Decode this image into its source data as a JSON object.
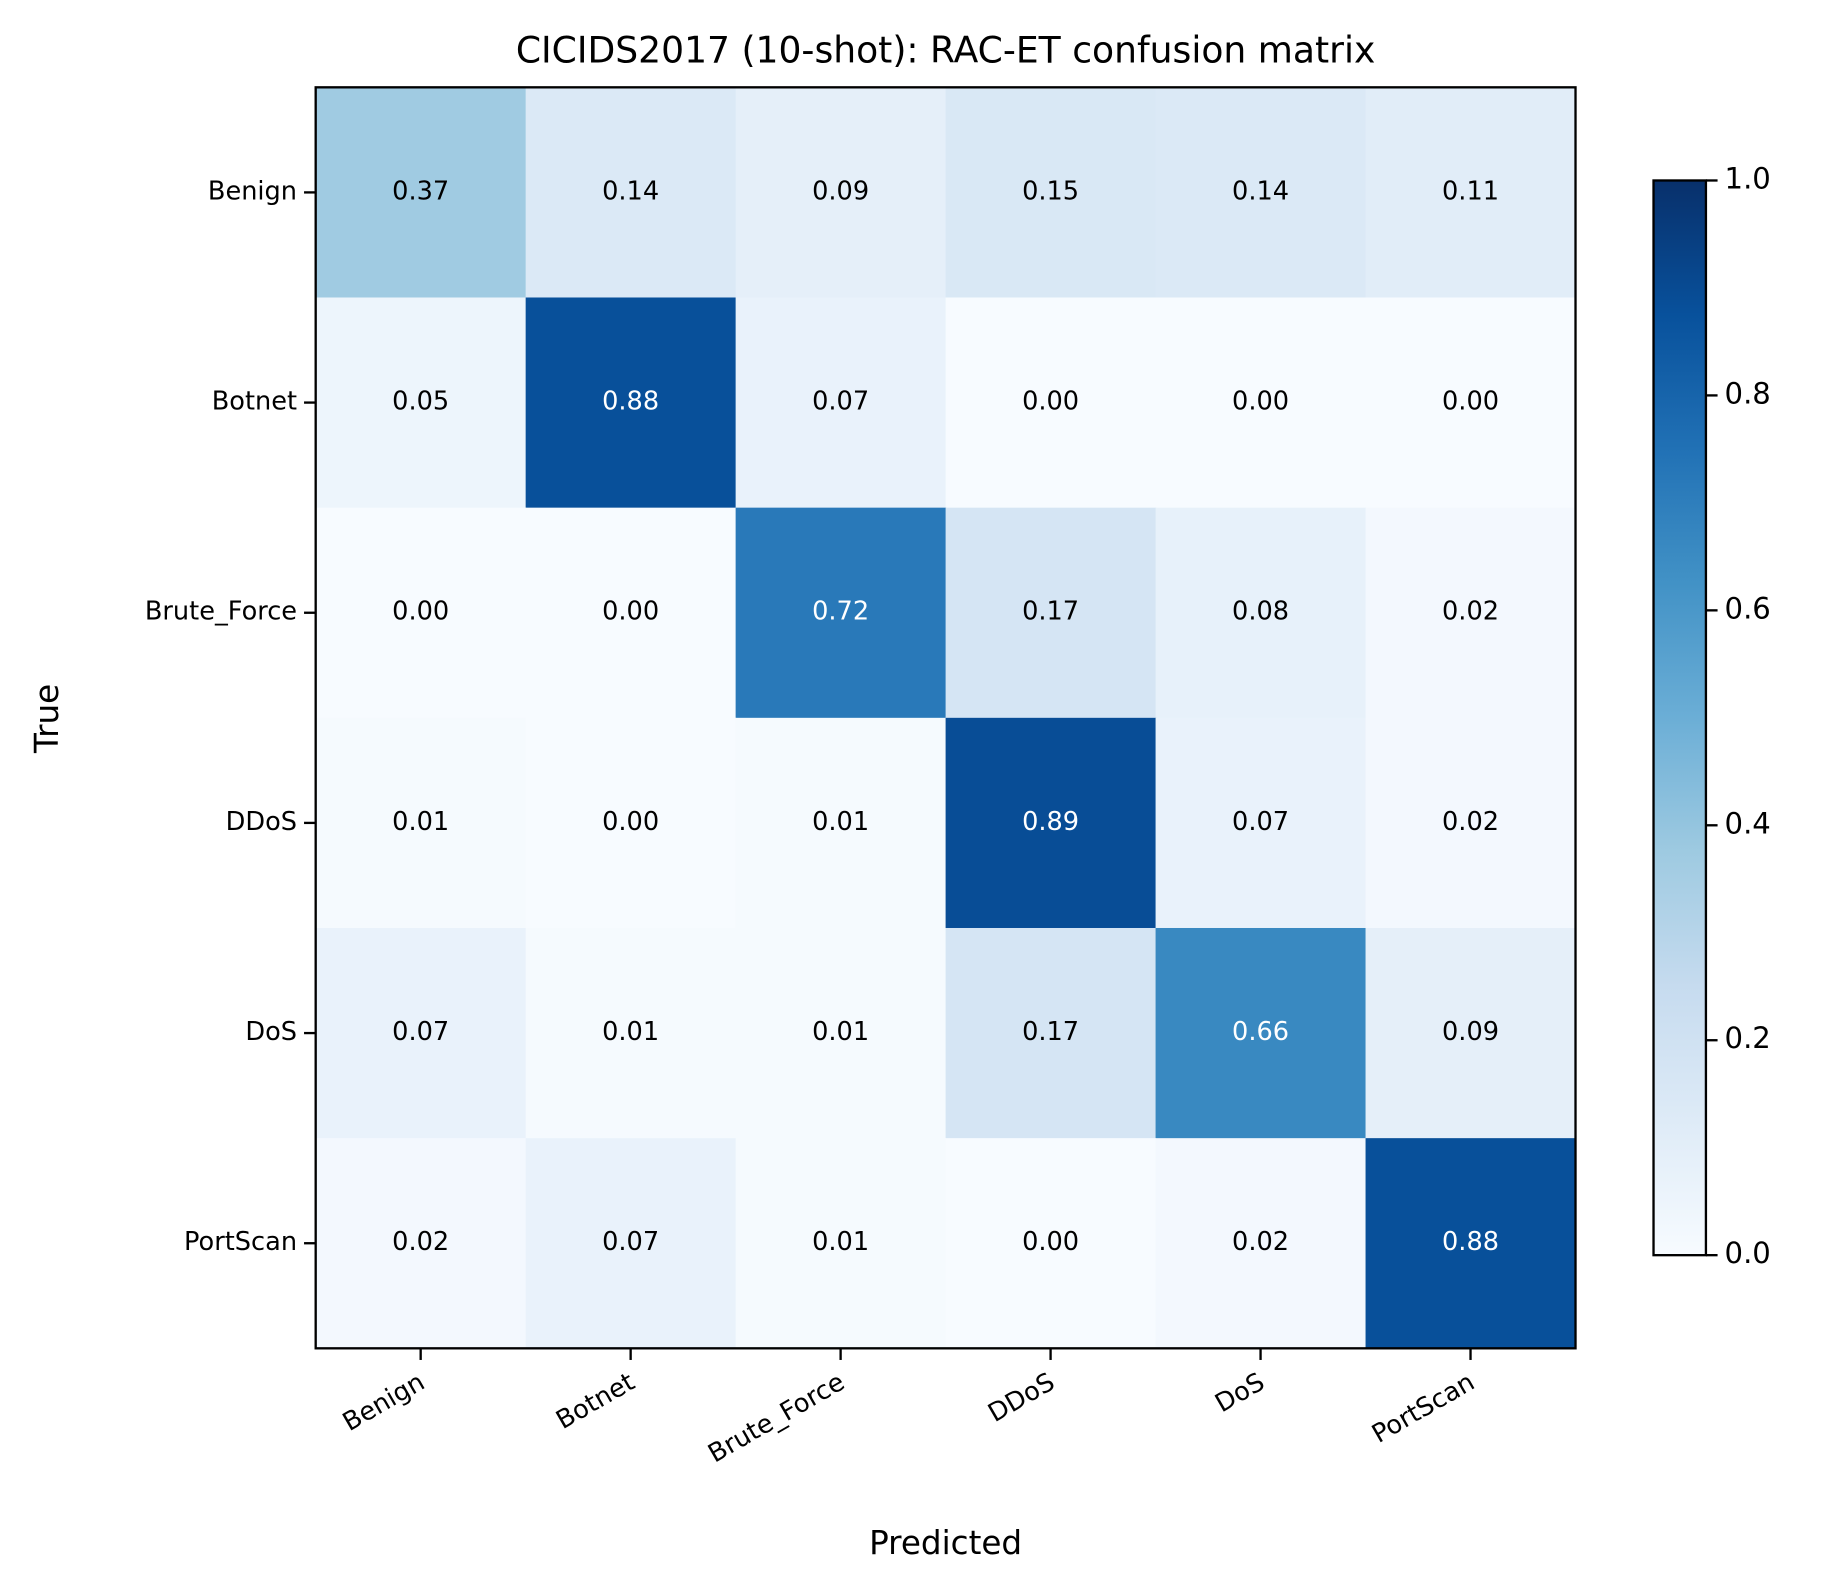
{
  "chart_data": {
    "type": "heatmap",
    "title": "CICIDS2017 (10-shot): RAC-ET confusion matrix",
    "x_label": "Predicted",
    "y_label": "True",
    "x_categories": [
      "Benign",
      "Botnet",
      "Brute_Force",
      "DDoS",
      "DoS",
      "PortScan"
    ],
    "y_categories": [
      "Benign",
      "Botnet",
      "Brute_Force",
      "DDoS",
      "DoS",
      "PortScan"
    ],
    "values": [
      [
        0.37,
        0.14,
        0.09,
        0.15,
        0.14,
        0.11
      ],
      [
        0.05,
        0.88,
        0.07,
        0,
        0,
        0
      ],
      [
        0,
        0,
        0.72,
        0.17,
        0.08,
        0.02
      ],
      [
        0.01,
        0,
        0.01,
        0.89,
        0.07,
        0.02
      ],
      [
        0.07,
        0.01,
        0.01,
        0.17,
        0.66,
        0.09
      ],
      [
        0.02,
        0.07,
        0.01,
        0,
        0.02,
        0.88
      ]
    ],
    "value_labels": [
      [
        "0.37",
        "0.14",
        "0.09",
        "0.15",
        "0.14",
        "0.11"
      ],
      [
        "0.05",
        "0.88",
        "0.07",
        "0.00",
        "0.00",
        "0.00"
      ],
      [
        "0.00",
        "0.00",
        "0.72",
        "0.17",
        "0.08",
        "0.02"
      ],
      [
        "0.01",
        "0.00",
        "0.01",
        "0.89",
        "0.07",
        "0.02"
      ],
      [
        "0.07",
        "0.01",
        "0.01",
        "0.17",
        "0.66",
        "0.09"
      ],
      [
        "0.02",
        "0.07",
        "0.01",
        "0.00",
        "0.02",
        "0.88"
      ]
    ],
    "colormap": "Blues",
    "clim": [
      0,
      1
    ],
    "cticks": [
      {
        "value": 0,
        "label": "0.0"
      },
      0.2,
      0.4,
      0.6,
      0.8,
      {
        "value": 1,
        "label": "1.0"
      }
    ]
  }
}
